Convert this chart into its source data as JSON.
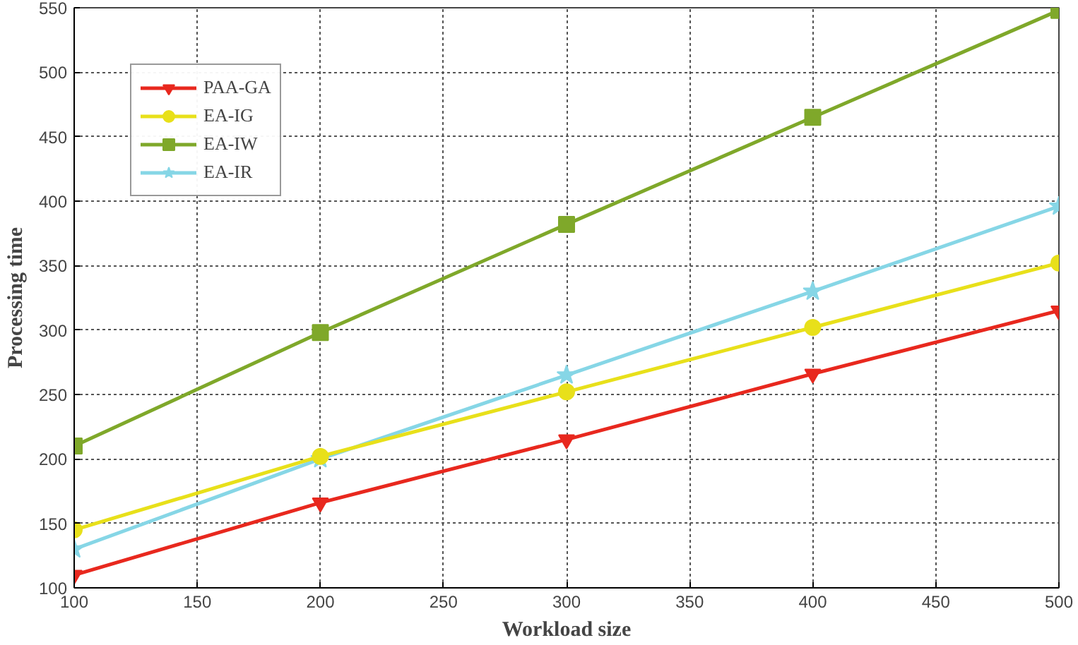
{
  "chart_data": {
    "type": "line",
    "xlabel": "Workload size",
    "ylabel": "Processing time",
    "x": [
      100,
      200,
      300,
      400,
      500
    ],
    "xlim": [
      100,
      500
    ],
    "xticks": [
      100,
      150,
      200,
      250,
      300,
      350,
      400,
      450,
      500
    ],
    "ylim": [
      100,
      550
    ],
    "yticks": [
      100,
      150,
      200,
      250,
      300,
      350,
      400,
      450,
      500,
      550
    ],
    "grid": true,
    "legend": "top left",
    "line_style": "solid",
    "series": [
      {
        "name": "PAA-GA",
        "color": "#e8281e",
        "marker": "triangle",
        "values": [
          110,
          166,
          215,
          266,
          315
        ]
      },
      {
        "name": "EA-IG",
        "color": "#e8e01a",
        "marker": "circle",
        "values": [
          145,
          202,
          252,
          302,
          352
        ]
      },
      {
        "name": "EA-IW",
        "color": "#7fa82a",
        "marker": "square",
        "values": [
          210,
          298,
          382,
          465,
          548
        ]
      },
      {
        "name": "EA-IR",
        "color": "#86d6e6",
        "marker": "star",
        "values": [
          130,
          200,
          265,
          330,
          396
        ]
      }
    ]
  }
}
